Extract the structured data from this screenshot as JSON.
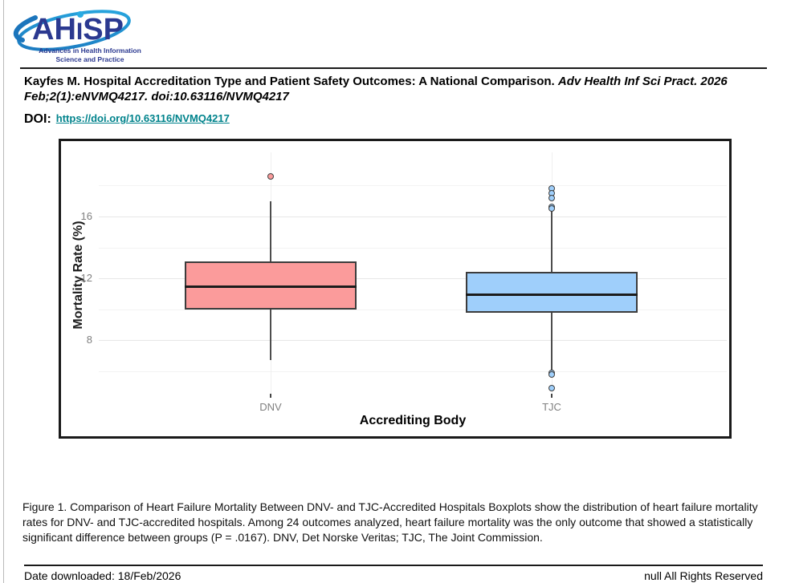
{
  "logo": {
    "acronym": "AHISP",
    "parts": {
      "pre": "AH",
      "i": "I",
      "post": "SP"
    },
    "tagline": [
      "Advances in Health Information",
      "Science and Practice"
    ],
    "colors": {
      "navy": "#2B3990",
      "swoosh_dark": "#1B75BC",
      "swoosh_light": "#29ABE2",
      "dot": "#29ABE2"
    }
  },
  "citation": {
    "plain": "Kayfes M. Hospital Accreditation Type and Patient Safety Outcomes: A National Comparison.",
    "italic": "Adv Health Inf Sci Pract. 2026 Feb;2(1):eNVMQ4217. doi:10.63116/NVMQ4217"
  },
  "doi": {
    "label": "DOI:",
    "url": "https://doi.org/10.63116/NVMQ4217",
    "link_color": "#00838C"
  },
  "chart_data": {
    "type": "boxplot",
    "title": "",
    "xlabel": "Accrediting Body",
    "ylabel": "Mortality Rate (%)",
    "ylim": [
      4.5,
      20
    ],
    "yticks": [
      8,
      12,
      16
    ],
    "grid_minor": [
      6,
      10,
      14,
      18
    ],
    "grid": true,
    "legend": "none",
    "categories": [
      "DNV",
      "TJC"
    ],
    "series": [
      {
        "name": "DNV",
        "fill": "#FB9B9B",
        "q1": 10.0,
        "median": 11.5,
        "q3": 13.1,
        "whisker_low": 6.7,
        "whisker_high": 17.0,
        "outliers": [
          18.6
        ]
      },
      {
        "name": "TJC",
        "fill": "#9FCFFB",
        "q1": 9.8,
        "median": 11.0,
        "q3": 12.4,
        "whisker_low": 6.0,
        "whisker_high": 16.5,
        "outliers": [
          17.8,
          17.5,
          17.2,
          16.6,
          16.5,
          5.9,
          5.8,
          4.9
        ]
      }
    ]
  },
  "caption": {
    "text": "Figure 1. Comparison of Heart Failure Mortality Between DNV- and TJC-Accredited Hospitals Boxplots show the distribution of heart failure mortality rates for DNV- and TJC-accredited hospitals. Among 24 outcomes analyzed, heart failure mortality was the only outcome that showed a statistically significant difference between groups (P = .0167). DNV, Det Norske Veritas; TJC, The Joint Commission."
  },
  "footer": {
    "date_label": "Date downloaded: 18/Feb/2026",
    "rights": "null All Rights Reserved"
  }
}
